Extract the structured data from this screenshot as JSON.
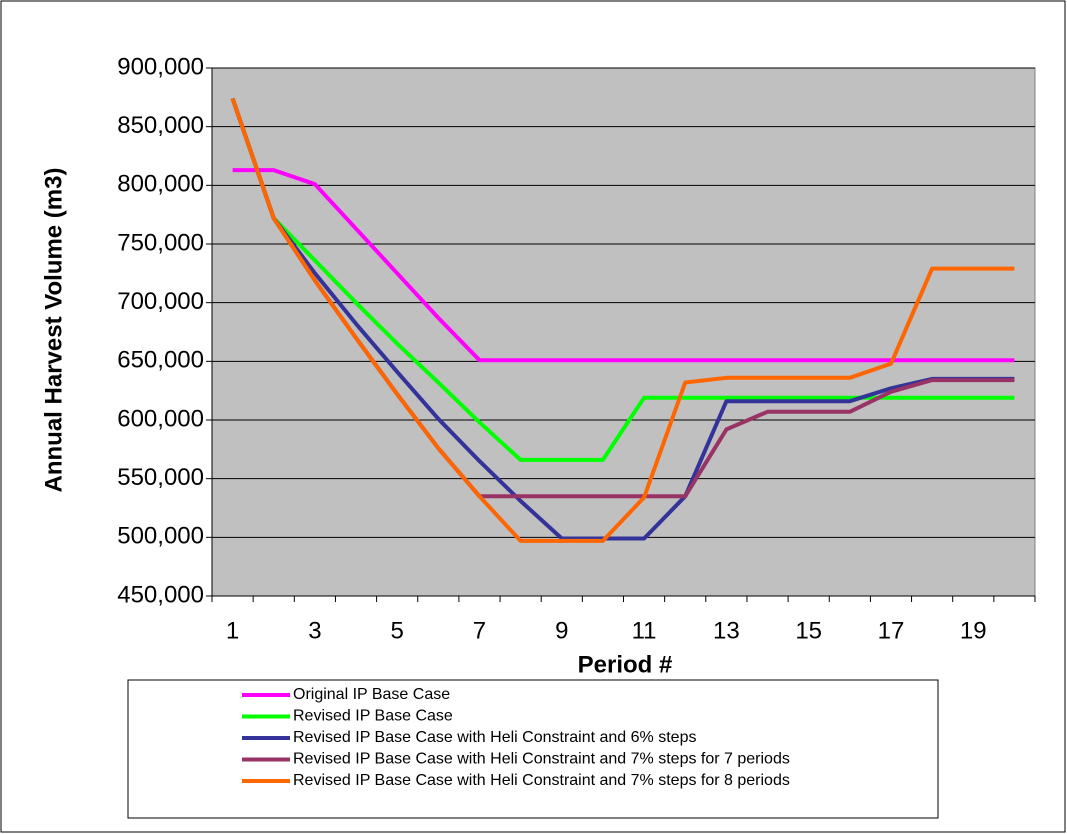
{
  "chart_data": {
    "type": "line",
    "y_label": "Annual Harvest Volume (m3)",
    "x_label": "Period #",
    "categories": [
      "1",
      null,
      "3",
      null,
      "5",
      null,
      "7",
      null,
      "9",
      null,
      "11",
      null,
      "13",
      null,
      "15",
      null,
      "17",
      null,
      "19",
      null
    ],
    "ylim": [
      450000,
      900000
    ],
    "yticks": [
      {
        "value": 450000,
        "label": "450,000"
      },
      {
        "value": 500000,
        "label": "500,000"
      },
      {
        "value": 550000,
        "label": "550,000"
      },
      {
        "value": 600000,
        "label": "600,000"
      },
      {
        "value": 650000,
        "label": "650,000"
      },
      {
        "value": 700000,
        "label": "700,000"
      },
      {
        "value": 750000,
        "label": "750,000"
      },
      {
        "value": 800000,
        "label": "800,000"
      },
      {
        "value": 850000,
        "label": "850,000"
      },
      {
        "value": 900000,
        "label": "900,000"
      }
    ],
    "grid": true,
    "series": [
      {
        "name": "Original IP Base Case",
        "color": "#ff00ff",
        "values": [
          813000,
          813000,
          801000,
          763000,
          725000,
          687000,
          651000,
          651000,
          651000,
          651000,
          651000,
          651000,
          651000,
          651000,
          651000,
          651000,
          651000,
          651000,
          651000,
          651000
        ]
      },
      {
        "name": "Revised IP Base Case",
        "color": "#00ff00",
        "values": [
          874000,
          772000,
          736000,
          700000,
          665000,
          632000,
          598000,
          566000,
          566000,
          566000,
          619000,
          619000,
          619000,
          619000,
          619000,
          619000,
          619000,
          619000,
          619000,
          619000
        ]
      },
      {
        "name": "Revised IP Base Case with Heli Constraint and 6% steps",
        "color": "#333399",
        "values": [
          874000,
          772000,
          725000,
          682000,
          641000,
          601000,
          565000,
          531000,
          499000,
          499000,
          499000,
          535000,
          616000,
          616000,
          616000,
          616000,
          627000,
          635000,
          635000,
          635000
        ]
      },
      {
        "name": "Revised IP Base Case with Heli Constraint and 7% steps for 7 periods",
        "color": "#993366",
        "values": [
          874000,
          772000,
          719000,
          670000,
          622000,
          576000,
          535000,
          535000,
          535000,
          535000,
          535000,
          535000,
          592000,
          607000,
          607000,
          607000,
          624000,
          634000,
          634000,
          634000
        ]
      },
      {
        "name": "Revised IP Base Case with Heli Constraint and 7% steps for 8 periods",
        "color": "#ff6600",
        "values": [
          874000,
          772000,
          719000,
          670000,
          622000,
          576000,
          535000,
          497000,
          497000,
          497000,
          534000,
          632000,
          636000,
          636000,
          636000,
          636000,
          648000,
          729000,
          729000,
          729000
        ]
      }
    ]
  }
}
